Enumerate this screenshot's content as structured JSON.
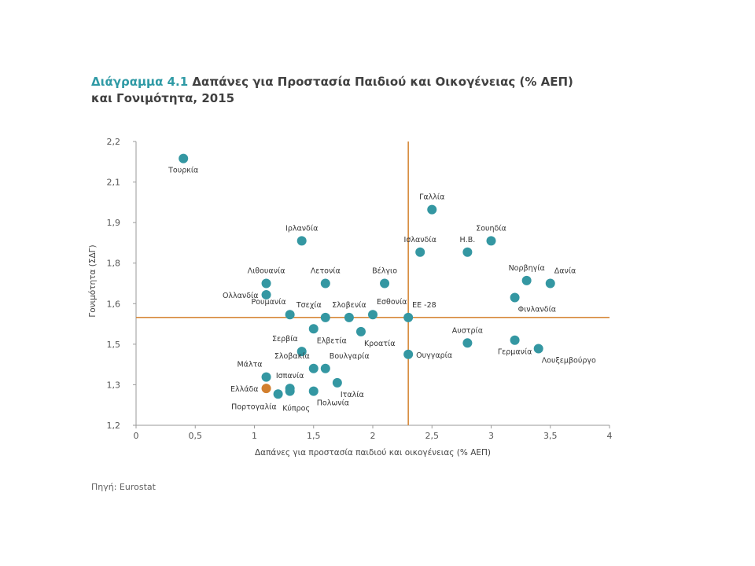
{
  "title": {
    "lead": "Διάγραμμα 4.1",
    "text": " Δαπάνες για Προστασία Παιδιού και Οικογένειας (% ΑΕΠ) και Γονιμότητα, 2015"
  },
  "source": "Πηγή: Eurostat",
  "colors": {
    "point": "#3497a2",
    "highlight": "#d27f2e",
    "refline": "#d6893a",
    "axis": "#9a9a9a"
  },
  "chart_data": {
    "type": "scatter",
    "xlabel": "Δαπάνες για προστασία παιδιού και οικογένειας (% ΑΕΠ)",
    "ylabel": "Γονιμότητα (ΣΔΓ)",
    "xlim": [
      0,
      4
    ],
    "ylim": [
      1.2,
      2.2
    ],
    "xticks": [
      "0",
      "0,5",
      "1",
      "1,5",
      "2",
      "2,5",
      "3",
      "3,5",
      "4"
    ],
    "yticks": [
      "1,2",
      "1,3",
      "1,5",
      "1,6",
      "1,8",
      "1,9",
      "2,1",
      "2,2"
    ],
    "reference": {
      "x": 2.3,
      "y": 1.58
    },
    "points": [
      {
        "name": "Τουρκία",
        "x": 0.4,
        "y": 2.14,
        "lp": "below"
      },
      {
        "name": "Γαλλία",
        "x": 2.5,
        "y": 1.96,
        "lp": "above"
      },
      {
        "name": "Ιρλανδία",
        "x": 1.4,
        "y": 1.85,
        "lp": "above"
      },
      {
        "name": "Ισλανδία",
        "x": 2.4,
        "y": 1.81,
        "lp": "above"
      },
      {
        "name": "Η.Β.",
        "x": 2.8,
        "y": 1.81,
        "lp": "above"
      },
      {
        "name": "Σουηδία",
        "x": 3.0,
        "y": 1.85,
        "lp": "above"
      },
      {
        "name": "Νορβηγία",
        "x": 3.3,
        "y": 1.71,
        "lp": "above"
      },
      {
        "name": "Δανία",
        "x": 3.5,
        "y": 1.7,
        "lp": "aboveright"
      },
      {
        "name": "Λιθουανία",
        "x": 1.1,
        "y": 1.7,
        "lp": "above"
      },
      {
        "name": "Λετονία",
        "x": 1.6,
        "y": 1.7,
        "lp": "above"
      },
      {
        "name": "Βέλγιο",
        "x": 2.1,
        "y": 1.7,
        "lp": "above"
      },
      {
        "name": "Ολλανδία",
        "x": 1.1,
        "y": 1.66,
        "lp": "left"
      },
      {
        "name": "Φινλανδία",
        "x": 3.2,
        "y": 1.65,
        "lp": "belowright"
      },
      {
        "name": "Ρουμανία",
        "x": 1.3,
        "y": 1.59,
        "lp": "aboveleft"
      },
      {
        "name": "Τσεχία",
        "x": 1.6,
        "y": 1.58,
        "lp": "aboveleft"
      },
      {
        "name": "Σλοβενία",
        "x": 1.8,
        "y": 1.58,
        "lp": "above"
      },
      {
        "name": "Εσθονία",
        "x": 2.0,
        "y": 1.59,
        "lp": "aboveright"
      },
      {
        "name": "ΕΕ -28",
        "x": 2.3,
        "y": 1.58,
        "lp": "aboveright"
      },
      {
        "name": "Ελβετία",
        "x": 1.5,
        "y": 1.54,
        "lp": "belowright"
      },
      {
        "name": "Κροατία",
        "x": 1.9,
        "y": 1.53,
        "lp": "belowright"
      },
      {
        "name": "Αυστρία",
        "x": 2.8,
        "y": 1.49,
        "lp": "above"
      },
      {
        "name": "Γερμανία",
        "x": 3.2,
        "y": 1.5,
        "lp": "below"
      },
      {
        "name": "Λουξεμβούργο",
        "x": 3.4,
        "y": 1.47,
        "lp": "belowright"
      },
      {
        "name": "Σερβία",
        "x": 1.4,
        "y": 1.46,
        "lp": "aboveleft"
      },
      {
        "name": "Ουγγαρία",
        "x": 2.3,
        "y": 1.45,
        "lp": "right"
      },
      {
        "name": "Σλοβακία",
        "x": 1.5,
        "y": 1.4,
        "lp": "aboveleft"
      },
      {
        "name": "Βουλγαρία",
        "x": 1.6,
        "y": 1.4,
        "lp": "aboveright"
      },
      {
        "name": "Μάλτα",
        "x": 1.1,
        "y": 1.37,
        "lp": "aboveleft"
      },
      {
        "name": "Ισπανία",
        "x": 1.3,
        "y": 1.33,
        "lp": "above"
      },
      {
        "name": "Ιταλία",
        "x": 1.7,
        "y": 1.35,
        "lp": "belowright"
      },
      {
        "name": "Ελλάδα",
        "x": 1.1,
        "y": 1.33,
        "lp": "left",
        "highlight": true
      },
      {
        "name": "Πορτογαλία",
        "x": 1.2,
        "y": 1.31,
        "lp": "belowleft"
      },
      {
        "name": "Κύπρος",
        "x": 1.3,
        "y": 1.32,
        "lp": "belowbelow"
      },
      {
        "name": "Πολωνία",
        "x": 1.5,
        "y": 1.32,
        "lp": "belowright"
      }
    ]
  }
}
